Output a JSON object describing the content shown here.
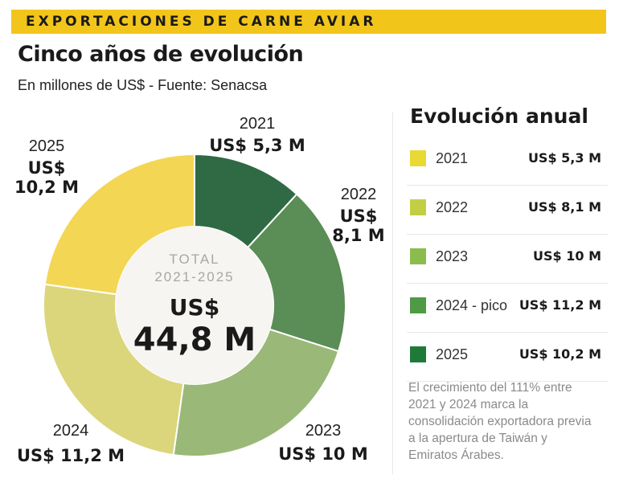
{
  "banner": "EXPORTACIONES DE CARNE AVIAR",
  "title": "Cinco años de evolución",
  "subtitle": "En millones de US$ - Fuente: Senacsa",
  "center": {
    "line1": "TOTAL",
    "line2": "2021-2025",
    "line3": "US$",
    "line4": "44,8 M"
  },
  "slice_labels": [
    {
      "year": "2021",
      "value": "US$ 5,3 M"
    },
    {
      "year": "2022",
      "value_l1": "US$",
      "value_l2": "8,1 M"
    },
    {
      "year": "2023",
      "value": "US$ 10 M"
    },
    {
      "year": "2024",
      "value": "US$ 11,2 M"
    },
    {
      "year": "2025",
      "value_l1": "US$",
      "value_l2": "10,2 M"
    }
  ],
  "legend": {
    "title": "Evolución anual",
    "items": [
      {
        "label": "2021",
        "value": "US$ 5,3 M",
        "color": "#e8d934"
      },
      {
        "label": "2022",
        "value": "US$ 8,1 M",
        "color": "#c2cf45"
      },
      {
        "label": "2023",
        "value": "US$ 10 M",
        "color": "#8bbd4e"
      },
      {
        "label": "2024 - pico",
        "value": "US$ 11,2 M",
        "color": "#4f9a45"
      },
      {
        "label": "2025",
        "value": "US$ 10,2 M",
        "color": "#1f7a3a"
      }
    ]
  },
  "note": "El crecimiento del 111% entre 2021 y 2024 marca la consolidación exportadora previa a la apertura de Taiwán y Emiratos Árabes.",
  "chart_data": {
    "type": "pie",
    "categories": [
      "2021",
      "2022",
      "2023",
      "2024",
      "2025"
    ],
    "values": [
      5.3,
      8.1,
      10,
      11.2,
      10.2
    ],
    "unit": "millones de US$",
    "total": 44.8,
    "slice_colors": [
      "#2f6a44",
      "#5b8d56",
      "#9ab877",
      "#dbd67c",
      "#f4d655"
    ]
  }
}
